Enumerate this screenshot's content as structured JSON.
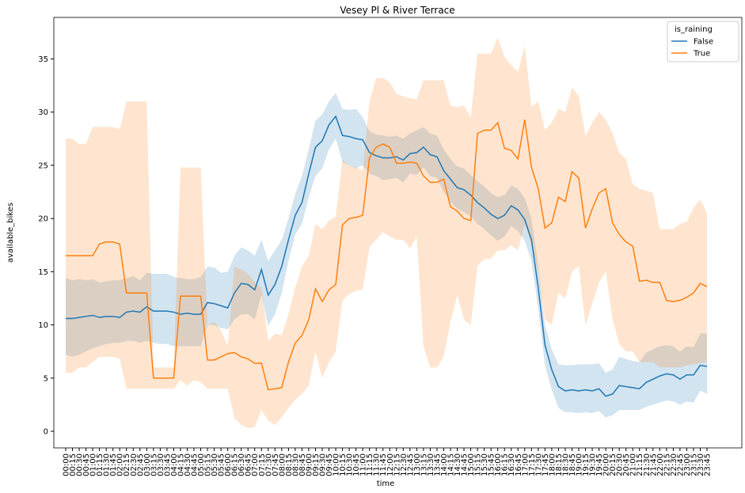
{
  "chart_data": {
    "type": "line",
    "title": "Vesey Pl & River Terrace",
    "x_label": "time",
    "y_label": "available_bikes",
    "legend_title": "is_raining",
    "legend_position": "upper right",
    "grid": false,
    "ylim": [
      -1.56,
      38.9
    ],
    "yticks": [
      0,
      5,
      10,
      15,
      20,
      25,
      30,
      35
    ],
    "categories": [
      "00:00",
      "00:15",
      "00:30",
      "00:45",
      "01:00",
      "01:15",
      "01:30",
      "01:45",
      "02:00",
      "02:15",
      "02:30",
      "02:45",
      "03:00",
      "03:15",
      "03:30",
      "03:45",
      "04:00",
      "04:15",
      "04:30",
      "04:45",
      "05:00",
      "05:15",
      "05:30",
      "05:45",
      "06:00",
      "06:15",
      "06:30",
      "06:45",
      "07:00",
      "07:15",
      "07:30",
      "07:45",
      "08:00",
      "08:15",
      "08:30",
      "08:45",
      "09:00",
      "09:15",
      "09:30",
      "09:45",
      "10:00",
      "10:15",
      "10:30",
      "10:45",
      "11:00",
      "11:15",
      "11:30",
      "11:45",
      "12:00",
      "12:15",
      "12:30",
      "12:45",
      "13:00",
      "13:15",
      "13:30",
      "13:45",
      "14:00",
      "14:15",
      "14:30",
      "14:45",
      "15:00",
      "15:15",
      "15:30",
      "15:45",
      "16:00",
      "16:15",
      "16:30",
      "16:45",
      "17:00",
      "17:15",
      "17:30",
      "17:45",
      "18:00",
      "18:15",
      "18:30",
      "18:45",
      "19:00",
      "19:15",
      "19:30",
      "19:45",
      "20:00",
      "20:15",
      "20:30",
      "20:45",
      "21:00",
      "21:15",
      "21:30",
      "21:45",
      "22:00",
      "22:15",
      "22:30",
      "22:45",
      "23:00",
      "23:15",
      "23:30",
      "23:45"
    ],
    "series": [
      {
        "name": "False",
        "color": "#1f77b4",
        "values": [
          10.6,
          10.6,
          10.7,
          10.8,
          10.9,
          10.7,
          10.8,
          10.8,
          10.7,
          11.2,
          11.3,
          11.2,
          11.7,
          11.3,
          11.3,
          11.3,
          11.2,
          11.0,
          11.1,
          11.0,
          11.0,
          12.1,
          12.0,
          11.8,
          11.6,
          13.0,
          13.9,
          13.8,
          13.3,
          15.2,
          12.8,
          13.8,
          15.5,
          18.0,
          20.3,
          21.5,
          24.2,
          26.7,
          27.3,
          28.8,
          29.6,
          27.8,
          27.7,
          27.5,
          27.4,
          26.2,
          25.9,
          25.7,
          25.7,
          25.8,
          25.5,
          26.1,
          26.2,
          26.7,
          26.0,
          25.8,
          24.5,
          23.7,
          22.9,
          22.7,
          22.2,
          21.5,
          21.0,
          20.4,
          20.0,
          20.3,
          21.2,
          20.8,
          19.9,
          18.0,
          13.5,
          8.1,
          5.8,
          4.2,
          3.8,
          3.9,
          3.8,
          3.9,
          3.8,
          4.0,
          3.3,
          3.5,
          4.3,
          4.2,
          4.1,
          4.0,
          4.6,
          4.9,
          5.2,
          5.4,
          5.3,
          4.9,
          5.3,
          5.3,
          6.2,
          6.1
        ],
        "ci_lower": [
          7.2,
          7.0,
          7.2,
          7.5,
          7.8,
          8.0,
          8.2,
          8.3,
          8.3,
          8.5,
          8.5,
          8.3,
          8.5,
          8.3,
          8.2,
          8.2,
          8.0,
          8.0,
          8.0,
          8.0,
          8.0,
          10.0,
          10.0,
          9.7,
          9.6,
          10.5,
          11.0,
          11.0,
          10.5,
          12.8,
          9.9,
          11.0,
          13.0,
          16.0,
          18.5,
          19.5,
          22.0,
          24.0,
          24.7,
          26.5,
          27.5,
          25.3,
          25.0,
          24.7,
          25.0,
          24.2,
          24.0,
          23.6,
          23.7,
          23.8,
          23.4,
          24.2,
          24.1,
          24.8,
          24.0,
          23.8,
          22.5,
          21.6,
          20.9,
          20.6,
          20.2,
          19.5,
          19.0,
          18.4,
          17.9,
          18.3,
          19.3,
          18.8,
          17.9,
          16.0,
          11.5,
          6.2,
          3.9,
          2.2,
          1.8,
          1.8,
          1.7,
          1.8,
          1.7,
          1.9,
          1.3,
          1.5,
          2.0,
          2.0,
          2.0,
          2.0,
          2.3,
          2.5,
          2.7,
          2.9,
          2.8,
          2.5,
          2.8,
          2.7,
          3.8,
          3.5
        ],
        "ci_upper": [
          14.4,
          14.2,
          14.3,
          14.2,
          14.3,
          14.0,
          14.1,
          14.2,
          14.2,
          14.4,
          14.6,
          14.2,
          14.9,
          14.8,
          14.8,
          14.8,
          14.5,
          14.4,
          14.3,
          14.3,
          14.5,
          15.5,
          15.4,
          14.9,
          15.0,
          16.5,
          17.3,
          17.0,
          16.5,
          18.0,
          16.0,
          17.0,
          18.0,
          20.0,
          22.3,
          24.0,
          26.5,
          29.2,
          29.8,
          31.0,
          31.8,
          30.3,
          30.2,
          30.3,
          29.5,
          28.2,
          27.9,
          27.8,
          27.7,
          27.8,
          27.5,
          28.0,
          28.3,
          28.6,
          28.0,
          27.8,
          26.5,
          25.6,
          24.9,
          24.7,
          24.1,
          23.5,
          23.0,
          22.4,
          22.0,
          22.2,
          23.1,
          22.8,
          21.9,
          20.0,
          15.6,
          10.0,
          7.7,
          6.3,
          6.2,
          6.2,
          6.3,
          6.3,
          6.3,
          6.4,
          5.5,
          5.8,
          7.0,
          6.8,
          6.6,
          6.5,
          7.4,
          7.7,
          8.0,
          8.1,
          8.0,
          7.5,
          8.0,
          7.9,
          9.2,
          9.2
        ]
      },
      {
        "name": "True",
        "color": "#ff7f0e",
        "values": [
          16.5,
          16.5,
          16.5,
          16.5,
          16.5,
          17.6,
          17.8,
          17.8,
          17.6,
          13.0,
          13.0,
          13.0,
          13.0,
          5.0,
          5.0,
          5.0,
          5.0,
          12.7,
          12.7,
          12.7,
          12.7,
          6.7,
          6.7,
          7.0,
          7.3,
          7.4,
          7.0,
          6.8,
          6.4,
          6.4,
          3.9,
          4.0,
          4.1,
          6.5,
          8.3,
          9.0,
          10.5,
          13.4,
          12.2,
          13.3,
          13.8,
          19.4,
          20.0,
          20.1,
          20.3,
          25.7,
          26.7,
          27.0,
          26.7,
          25.2,
          25.2,
          25.3,
          25.2,
          24.0,
          23.4,
          23.4,
          23.7,
          21.1,
          20.7,
          20.0,
          19.8,
          28.0,
          28.3,
          28.3,
          29.0,
          26.6,
          26.4,
          25.6,
          29.3,
          24.8,
          22.8,
          19.1,
          19.6,
          22.0,
          21.6,
          24.4,
          23.8,
          19.1,
          20.9,
          22.4,
          22.8,
          19.6,
          18.5,
          17.8,
          17.4,
          14.1,
          14.2,
          14.0,
          14.0,
          12.3,
          12.2,
          12.3,
          12.6,
          13.0,
          13.9,
          13.6
        ],
        "ci_lower": [
          5.5,
          5.5,
          6.0,
          6.0,
          6.5,
          7.0,
          7.0,
          7.0,
          6.8,
          4.0,
          4.0,
          4.0,
          4.0,
          4.0,
          4.0,
          4.0,
          4.0,
          4.8,
          4.3,
          4.8,
          4.6,
          4.0,
          4.0,
          4.0,
          4.0,
          1.2,
          0.6,
          0.3,
          0.4,
          2.0,
          1.0,
          0.6,
          1.3,
          2.2,
          3.0,
          3.5,
          4.3,
          7.5,
          5.0,
          6.5,
          7.5,
          12.3,
          12.9,
          13.2,
          13.3,
          17.3,
          18.0,
          18.7,
          18.3,
          18.0,
          18.0,
          17.2,
          18.3,
          8.0,
          6.0,
          6.0,
          7.0,
          10.3,
          12.8,
          10.5,
          10.0,
          15.5,
          16.2,
          16.2,
          17.0,
          17.0,
          17.5,
          17.0,
          19.5,
          17.5,
          15.0,
          10.5,
          10.0,
          13.0,
          12.5,
          15.0,
          15.5,
          10.0,
          12.0,
          14.0,
          15.0,
          10.5,
          8.2,
          7.5,
          7.5,
          6.5,
          6.5,
          6.5,
          6.0,
          6.0,
          6.0,
          6.0,
          6.2,
          6.3,
          6.4,
          6.5
        ],
        "ci_upper": [
          27.5,
          27.5,
          27.0,
          27.0,
          28.6,
          28.6,
          28.6,
          28.6,
          28.4,
          31.0,
          31.0,
          31.0,
          31.0,
          6.0,
          6.0,
          6.0,
          6.0,
          24.8,
          24.8,
          24.8,
          24.8,
          10.0,
          10.3,
          9.5,
          8.0,
          15.5,
          15.2,
          14.8,
          14.0,
          13.5,
          8.5,
          9.2,
          9.0,
          11.0,
          13.5,
          15.5,
          16.5,
          19.5,
          19.0,
          19.8,
          20.2,
          25.5,
          25.0,
          24.8,
          24.5,
          31.0,
          33.2,
          33.2,
          32.8,
          31.7,
          31.5,
          31.3,
          31.2,
          33.0,
          33.0,
          33.0,
          33.0,
          30.6,
          30.5,
          30.6,
          29.5,
          35.5,
          35.5,
          35.5,
          37.0,
          35.2,
          34.4,
          33.8,
          36.2,
          30.5,
          31.0,
          28.3,
          29.0,
          30.3,
          30.0,
          32.3,
          31.5,
          27.8,
          29.0,
          30.0,
          29.3,
          28.0,
          26.2,
          25.6,
          23.2,
          22.8,
          22.6,
          22.4,
          19.0,
          19.0,
          19.0,
          19.5,
          19.7,
          21.0,
          21.8,
          20.5
        ]
      }
    ]
  }
}
